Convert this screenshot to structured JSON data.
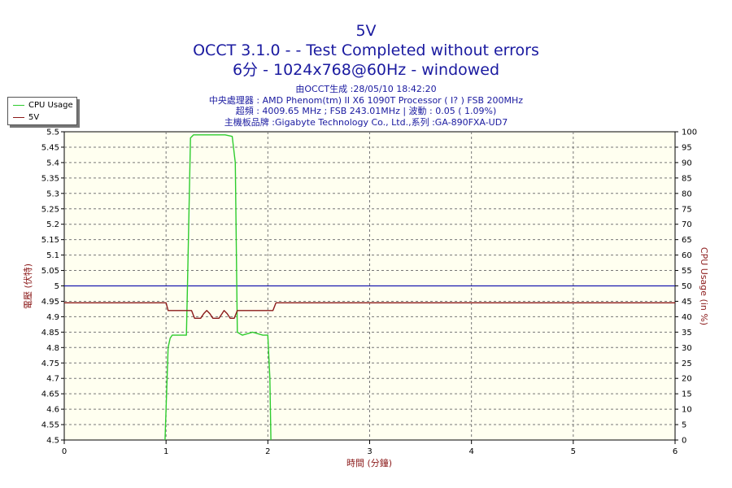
{
  "chart_data": {
    "type": "line",
    "title": "5V",
    "subtitle_lines": [
      "OCCT 3.1.0 -  - Test Completed without errors",
      "6分 - 1024x768@60Hz - windowed"
    ],
    "info_lines": [
      "由OCCT生成 :28/05/10 18:42:20",
      "中央處理器 : AMD Phenom(tm) II X6 1090T Processor (  I? ) FSB 200MHz",
      "超頻 : 4009.65 MHz ; FSB 243.01MHz | 波動 : 0.05 ( 1.09%)",
      "主機板品牌 :Gigabyte Technology Co., Ltd.,系列 :GA-890FXA-UD7"
    ],
    "xlabel": "時間 (分鐘)",
    "ylabel_left": "電壓 (伏特)",
    "ylabel_right": "CPU Usage (in %)",
    "xlim": [
      0,
      6
    ],
    "ylim_left": [
      4.5,
      5.5
    ],
    "ylim_right": [
      0,
      100
    ],
    "x_ticks": [
      "0",
      "1",
      "2",
      "3",
      "4",
      "5",
      "6"
    ],
    "y_ticks_left": [
      "4.5",
      "4.55",
      "4.6",
      "4.65",
      "4.7",
      "4.75",
      "4.8",
      "4.85",
      "4.9",
      "4.95",
      "5",
      "5.05",
      "5.1",
      "5.15",
      "5.2",
      "5.25",
      "5.3",
      "5.35",
      "5.4",
      "5.45",
      "5.5"
    ],
    "y_ticks_right": [
      "0",
      "5",
      "10",
      "15",
      "20",
      "25",
      "30",
      "35",
      "40",
      "45",
      "50",
      "55",
      "60",
      "65",
      "70",
      "75",
      "80",
      "85",
      "90",
      "95",
      "100"
    ],
    "grid": true,
    "legend_position": "top-left",
    "series": [
      {
        "name": "CPU Usage",
        "axis": "right",
        "color": "#2ecc2e",
        "points": [
          [
            0.99,
            0
          ],
          [
            1.02,
            30
          ],
          [
            1.04,
            33
          ],
          [
            1.06,
            34
          ],
          [
            1.2,
            34
          ],
          [
            1.21,
            50
          ],
          [
            1.24,
            98
          ],
          [
            1.27,
            99
          ],
          [
            1.35,
            99
          ],
          [
            1.42,
            99
          ],
          [
            1.5,
            99
          ],
          [
            1.58,
            99
          ],
          [
            1.65,
            98.5
          ],
          [
            1.68,
            90
          ],
          [
            1.7,
            35
          ],
          [
            1.75,
            34
          ],
          [
            1.85,
            35
          ],
          [
            1.95,
            34
          ],
          [
            2.0,
            34
          ],
          [
            2.02,
            20
          ],
          [
            2.03,
            0
          ]
        ]
      },
      {
        "name": "5V",
        "axis": "left",
        "color": "#8b1a1a",
        "points": [
          [
            0,
            4.945
          ],
          [
            1.0,
            4.945
          ],
          [
            1.02,
            4.92
          ],
          [
            1.25,
            4.92
          ],
          [
            1.28,
            4.895
          ],
          [
            1.34,
            4.895
          ],
          [
            1.37,
            4.91
          ],
          [
            1.4,
            4.92
          ],
          [
            1.43,
            4.91
          ],
          [
            1.46,
            4.895
          ],
          [
            1.52,
            4.895
          ],
          [
            1.55,
            4.91
          ],
          [
            1.57,
            4.92
          ],
          [
            1.6,
            4.91
          ],
          [
            1.63,
            4.895
          ],
          [
            1.67,
            4.895
          ],
          [
            1.7,
            4.92
          ],
          [
            2.05,
            4.92
          ],
          [
            2.08,
            4.945
          ],
          [
            6,
            4.945
          ]
        ]
      }
    ],
    "reference_line": {
      "y": 5.0,
      "axis": "left",
      "color": "#1a1ab0"
    }
  }
}
